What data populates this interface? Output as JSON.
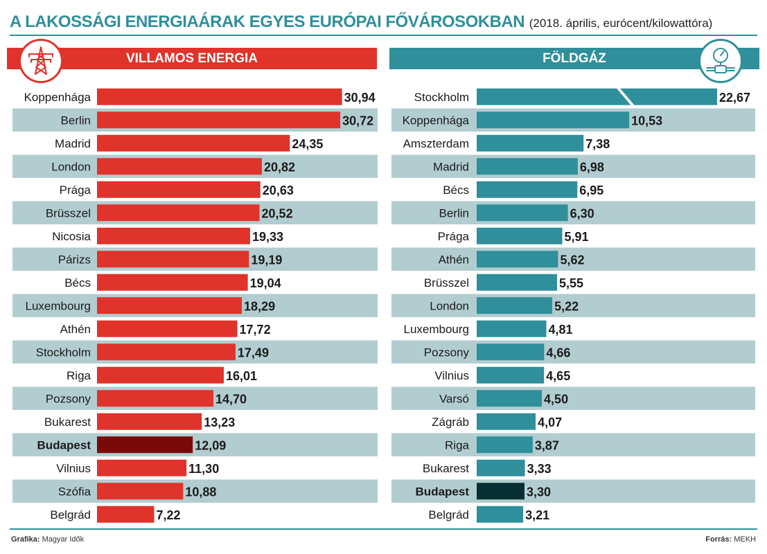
{
  "title": {
    "main": "A LAKOSSÁGI ENERGIAÁRAK EGYES EURÓPAI FŐVÁROSOKBAN",
    "sub": "(2018. április, eurócent/kilowattóra)"
  },
  "colors": {
    "electricity_bar": "#e0332b",
    "electricity_highlight": "#7a0a0a",
    "gas_bar": "#2f8f9a",
    "gas_highlight": "#062e33",
    "stripe": "#b2cdd0",
    "accent": "#2f8f9a"
  },
  "icons": {
    "electricity": "power-pylon-icon",
    "gas": "gas-meter-icon"
  },
  "footer": {
    "left_label": "Grafika:",
    "left_value": "Magyar Idők",
    "right_label": "Forrás:",
    "right_value": "MEKH"
  },
  "chart_data": [
    {
      "type": "bar",
      "orientation": "horizontal",
      "title": "VILLAMOS ENERGIA",
      "highlight": "Budapest",
      "categories": [
        "Koppenhága",
        "Berlin",
        "Madrid",
        "London",
        "Prága",
        "Brüsszel",
        "Nicosia",
        "Párizs",
        "Bécs",
        "Luxembourg",
        "Athén",
        "Stockholm",
        "Riga",
        "Pozsony",
        "Bukarest",
        "Budapest",
        "Vilnius",
        "Szófia",
        "Belgrád"
      ],
      "values": [
        30.94,
        30.72,
        24.35,
        20.82,
        20.63,
        20.52,
        19.33,
        19.19,
        19.04,
        18.29,
        17.72,
        17.49,
        16.01,
        14.7,
        13.23,
        12.09,
        11.3,
        10.88,
        7.22
      ],
      "labels": [
        "30,94",
        "30,72",
        "24,35",
        "20,82",
        "20,63",
        "20,52",
        "19,33",
        "19,19",
        "19,04",
        "18,29",
        "17,72",
        "17,49",
        "16,01",
        "14,70",
        "13,23",
        "12,09",
        "11,30",
        "10,88",
        "7,22"
      ]
    },
    {
      "type": "bar",
      "orientation": "horizontal",
      "title": "FÖLDGÁZ",
      "highlight": "Budapest",
      "broken_axis_category": "Stockholm",
      "categories": [
        "Stockholm",
        "Koppenhága",
        "Amszterdam",
        "Madrid",
        "Bécs",
        "Berlin",
        "Prága",
        "Athén",
        "Brüsszel",
        "London",
        "Luxembourg",
        "Pozsony",
        "Vilnius",
        "Varsó",
        "Zágráb",
        "Riga",
        "Bukarest",
        "Budapest",
        "Belgrád"
      ],
      "values": [
        22.67,
        10.53,
        7.38,
        6.98,
        6.95,
        6.3,
        5.91,
        5.62,
        5.55,
        5.22,
        4.81,
        4.66,
        4.65,
        4.5,
        4.07,
        3.87,
        3.33,
        3.3,
        3.21
      ],
      "labels": [
        "22,67",
        "10,53",
        "7,38",
        "6,98",
        "6,95",
        "6,30",
        "5,91",
        "5,62",
        "5,55",
        "5,22",
        "4,81",
        "4,66",
        "4,65",
        "4,50",
        "4,07",
        "3,87",
        "3,33",
        "3,30",
        "3,21"
      ]
    }
  ]
}
